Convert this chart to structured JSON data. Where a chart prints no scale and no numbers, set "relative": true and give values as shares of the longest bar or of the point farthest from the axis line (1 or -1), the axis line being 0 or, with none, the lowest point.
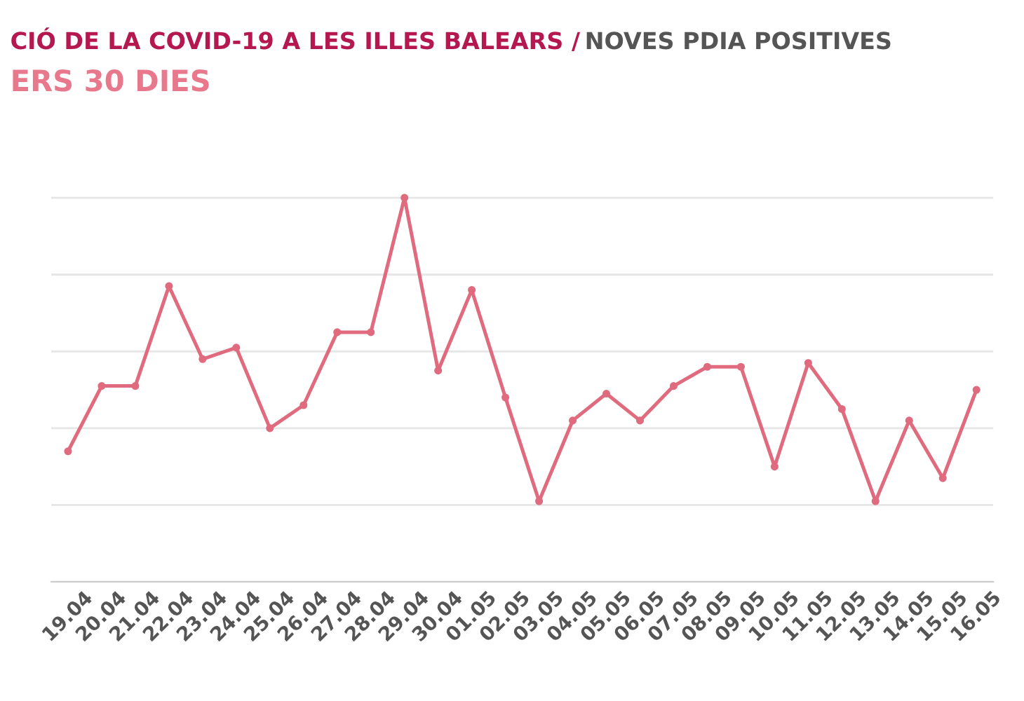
{
  "chart_data": {
    "type": "line",
    "title": "CIÓ DE LA COVID-19 A LES ILLES BALEARS /",
    "subtitle": "NOVES PDIA POSITIVES",
    "annotations": [
      "ERS 30 DIES"
    ],
    "categories": [
      "19.04",
      "20.04",
      "21.04",
      "22.04",
      "23.04",
      "24.04",
      "25.04",
      "26.04",
      "27.04",
      "28.04",
      "29.04",
      "30.04",
      "01.05",
      "02.05",
      "03.05",
      "04.05",
      "05.05",
      "06.05",
      "07.05",
      "08.05",
      "09.05",
      "10.05",
      "11.05",
      "12.05",
      "13.05",
      "14.05",
      "15.05",
      "16.05"
    ],
    "relative": true,
    "series": [
      {
        "color": "#e06b7e",
        "values": [
          0.34,
          0.51,
          0.51,
          0.77,
          0.58,
          0.61,
          0.4,
          0.46,
          0.65,
          0.65,
          1,
          0.55,
          0.76,
          0.48,
          0.21,
          0.42,
          0.49,
          0.42,
          0.51,
          0.56,
          0.56,
          0.3,
          0.57,
          0.45,
          0.21,
          0.42,
          0.27,
          0.5
        ]
      }
    ],
    "grid": "y",
    "marker": "circle",
    "line_style": "solid",
    "legend": false
  }
}
